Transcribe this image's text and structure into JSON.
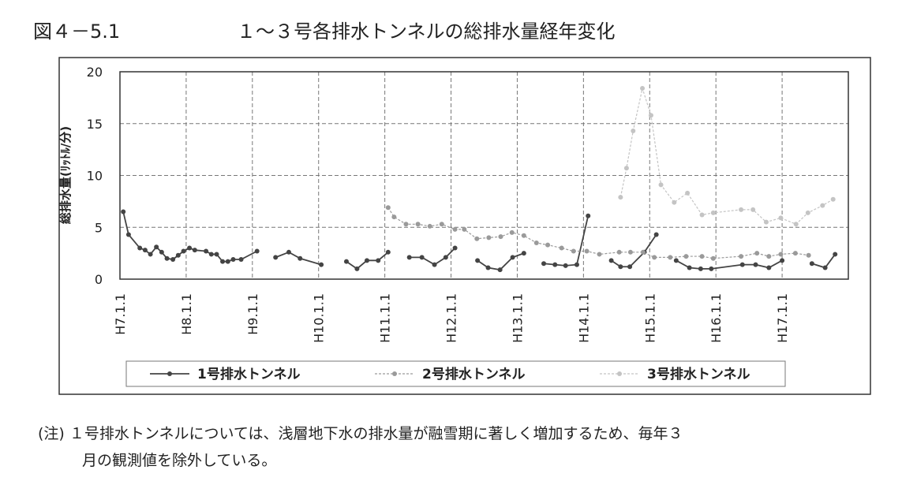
{
  "figure_label": "図４－5.1",
  "note": [
    "(注) １号排水トンネルについては、浅層地下水の排水量が融雪期に著しく増加するため、毎年３",
    "月の観測値を除外している。"
  ],
  "chart_data": {
    "type": "line",
    "title": "１～３号各排水トンネルの総排水量経年変化",
    "y_label": "総排水量(ﾘｯﾄﾙ/分)",
    "xlim": [
      7,
      18
    ],
    "ylim": [
      0,
      20
    ],
    "yticks": [
      0,
      5,
      10,
      15,
      20
    ],
    "grid": true,
    "xticks": [
      {
        "value": 7,
        "label": "H7.1.1"
      },
      {
        "value": 8,
        "label": "H8.1.1"
      },
      {
        "value": 9,
        "label": "H9.1.1"
      },
      {
        "value": 10,
        "label": "H10.1.1"
      },
      {
        "value": 11,
        "label": "H11.1.1"
      },
      {
        "value": 12,
        "label": "H12.1.1"
      },
      {
        "value": 13,
        "label": "H13.1.1"
      },
      {
        "value": 14,
        "label": "H14.1.1"
      },
      {
        "value": 15,
        "label": "H15.1.1"
      },
      {
        "value": 16,
        "label": "H16.1.1"
      },
      {
        "value": 17,
        "label": "H17.1.1"
      }
    ],
    "series": [
      {
        "name": "1号排水トンネル",
        "color": "#444444",
        "dash": false,
        "x": [
          7.05,
          7.13,
          7.3,
          7.38,
          7.46,
          7.55,
          7.63,
          7.71,
          7.8,
          7.88,
          7.96,
          8.05,
          8.13,
          8.3,
          8.38,
          8.46,
          8.55,
          8.63,
          8.71,
          8.83,
          9.07,
          null,
          9.35,
          9.55,
          9.72,
          10.04,
          null,
          10.42,
          10.58,
          10.73,
          10.9,
          11.05,
          null,
          11.37,
          11.56,
          11.75,
          11.92,
          12.06,
          null,
          12.4,
          12.56,
          12.74,
          12.93,
          13.1,
          null,
          13.4,
          13.57,
          13.73,
          13.9,
          14.07,
          null,
          14.42,
          14.56,
          14.7,
          14.92,
          15.1,
          null,
          15.4,
          15.6,
          15.77,
          15.93,
          16.4,
          16.6,
          16.8,
          17.0,
          null,
          17.45,
          17.65,
          17.8
        ],
        "values": [
          6.5,
          4.3,
          3.0,
          2.8,
          2.4,
          3.1,
          2.6,
          2.0,
          1.9,
          2.3,
          2.7,
          3.0,
          2.8,
          2.7,
          2.4,
          2.4,
          1.7,
          1.7,
          1.9,
          1.9,
          2.7,
          null,
          2.1,
          2.6,
          2.0,
          1.4,
          null,
          1.7,
          1.0,
          1.8,
          1.8,
          2.6,
          null,
          2.1,
          2.1,
          1.4,
          2.1,
          3.0,
          null,
          1.8,
          1.1,
          0.9,
          2.1,
          2.5,
          null,
          1.5,
          1.4,
          1.3,
          1.4,
          6.1,
          null,
          1.8,
          1.2,
          1.2,
          2.6,
          4.3,
          null,
          1.8,
          1.1,
          1.0,
          1.0,
          1.4,
          1.4,
          1.1,
          1.8,
          null,
          1.5,
          1.1,
          2.4
        ]
      },
      {
        "name": "2号排水トンネル",
        "color": "#9a9a9a",
        "dash": true,
        "x": [
          11.05,
          11.14,
          11.32,
          11.5,
          11.68,
          11.86,
          12.06,
          12.2,
          12.39,
          12.57,
          12.75,
          12.92,
          13.1,
          13.29,
          13.46,
          13.67,
          13.85,
          14.05,
          14.24,
          14.54,
          14.71,
          14.9,
          15.07,
          15.31,
          15.55,
          15.79,
          15.96,
          16.38,
          16.62,
          16.8,
          16.98,
          17.2,
          17.4
        ],
        "values": [
          6.9,
          6.0,
          5.3,
          5.3,
          5.1,
          5.3,
          4.8,
          4.8,
          3.9,
          4.0,
          4.1,
          4.5,
          4.2,
          3.5,
          3.3,
          3.0,
          2.7,
          2.7,
          2.4,
          2.6,
          2.6,
          2.6,
          2.1,
          2.1,
          2.2,
          2.2,
          2.0,
          2.2,
          2.5,
          2.2,
          2.4,
          2.5,
          2.3
        ]
      },
      {
        "name": "3号排水トンネル",
        "color": "#c4c4c4",
        "dash": true,
        "x": [
          14.56,
          14.65,
          14.75,
          14.89,
          15.02,
          15.17,
          15.37,
          15.57,
          15.79,
          15.96,
          16.38,
          16.56,
          16.76,
          16.98,
          17.21,
          17.39,
          17.61,
          17.77
        ],
        "values": [
          7.9,
          10.7,
          14.3,
          18.4,
          15.8,
          9.1,
          7.4,
          8.3,
          6.2,
          6.4,
          6.7,
          6.7,
          5.5,
          5.9,
          5.3,
          6.4,
          7.1,
          7.7
        ]
      }
    ]
  }
}
